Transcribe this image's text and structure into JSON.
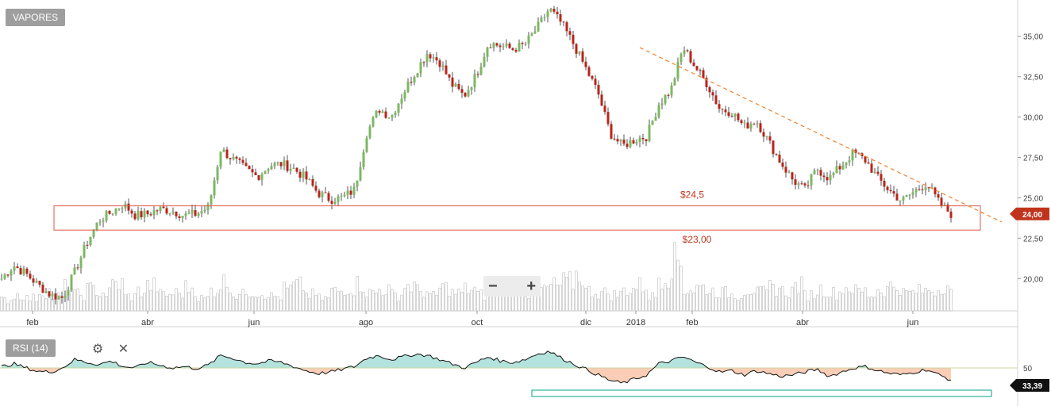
{
  "symbol": "VAPORES",
  "indicator_label": "RSI (14)",
  "zoom": {
    "minus": "−",
    "plus": "+"
  },
  "rsi_tools": {
    "settings_icon": "gear-icon",
    "close_icon": "close-icon"
  },
  "chart_data": {
    "type": "candlestick",
    "title": "VAPORES",
    "price_axis": {
      "ticks": [
        "35,00",
        "32,50",
        "30,00",
        "27,50",
        "25,00",
        "22,50",
        "20,00"
      ],
      "ylim": [
        18.0,
        37.0
      ],
      "side": "right"
    },
    "x_ticks": [
      "feb",
      "abr",
      "jun",
      "ago",
      "oct",
      "dic",
      "2018",
      "feb",
      "abr",
      "jun"
    ],
    "last_price": "24,00",
    "support_zone": {
      "upper": 24.5,
      "lower": 23.0,
      "upper_label": "$24,5",
      "lower_label": "$23,00"
    },
    "trendline": {
      "from": 34.3,
      "to": 23.5,
      "style": "dashed"
    },
    "price_series": [
      20.0,
      20.8,
      20.3,
      19.6,
      19.0,
      18.8,
      20.4,
      22.2,
      23.6,
      24.1,
      24.6,
      23.9,
      24.0,
      24.3,
      24.2,
      23.9,
      24.0,
      24.4,
      28.0,
      27.4,
      26.8,
      26.3,
      27.0,
      27.1,
      26.8,
      26.2,
      25.3,
      24.9,
      25.0,
      25.5,
      29.0,
      30.5,
      30.0,
      31.5,
      32.8,
      34.0,
      33.4,
      32.0,
      31.3,
      32.6,
      34.6,
      34.4,
      34.2,
      34.5,
      35.5,
      36.7,
      35.8,
      34.5,
      33.0,
      31.5,
      29.0,
      28.2,
      28.6,
      28.8,
      30.8,
      31.7,
      34.3,
      33.1,
      32.0,
      30.5,
      30.3,
      29.4,
      29.8,
      28.5,
      27.2,
      26.1,
      25.5,
      26.8,
      26.2,
      27.0,
      27.8,
      27.3,
      26.2,
      25.4,
      24.8,
      25.4,
      25.9,
      24.7,
      24.0
    ],
    "volume_series": [
      6,
      9,
      7,
      11,
      8,
      13,
      9,
      12,
      10,
      15,
      8,
      11,
      14,
      9,
      10,
      13,
      7,
      12,
      16,
      9,
      11,
      10,
      8,
      12,
      14,
      9,
      7,
      11,
      13,
      15,
      10,
      12,
      9,
      14,
      11,
      8,
      13,
      10,
      12,
      9,
      11,
      15,
      13,
      10,
      12,
      14,
      16,
      20,
      11,
      10,
      9,
      12,
      14,
      8,
      20,
      28,
      12,
      13,
      11,
      10,
      9,
      12,
      10,
      13,
      11,
      14,
      9,
      12,
      10,
      13,
      11,
      9,
      12,
      14,
      10,
      11,
      12,
      15,
      10
    ],
    "rsi": {
      "level": 50,
      "last": "33,39",
      "label": "RSI (14)"
    },
    "rsi_series": [
      52,
      56,
      50,
      45,
      44,
      50,
      62,
      58,
      55,
      60,
      52,
      50,
      58,
      54,
      50,
      52,
      49,
      54,
      68,
      64,
      58,
      56,
      60,
      58,
      52,
      46,
      42,
      44,
      48,
      52,
      64,
      68,
      62,
      66,
      70,
      68,
      62,
      56,
      50,
      58,
      66,
      60,
      58,
      62,
      70,
      74,
      64,
      56,
      48,
      40,
      32,
      28,
      34,
      40,
      56,
      60,
      66,
      58,
      52,
      44,
      46,
      40,
      46,
      42,
      38,
      40,
      44,
      48,
      38,
      44,
      50,
      52,
      46,
      42,
      40,
      44,
      48,
      40,
      33
    ]
  }
}
